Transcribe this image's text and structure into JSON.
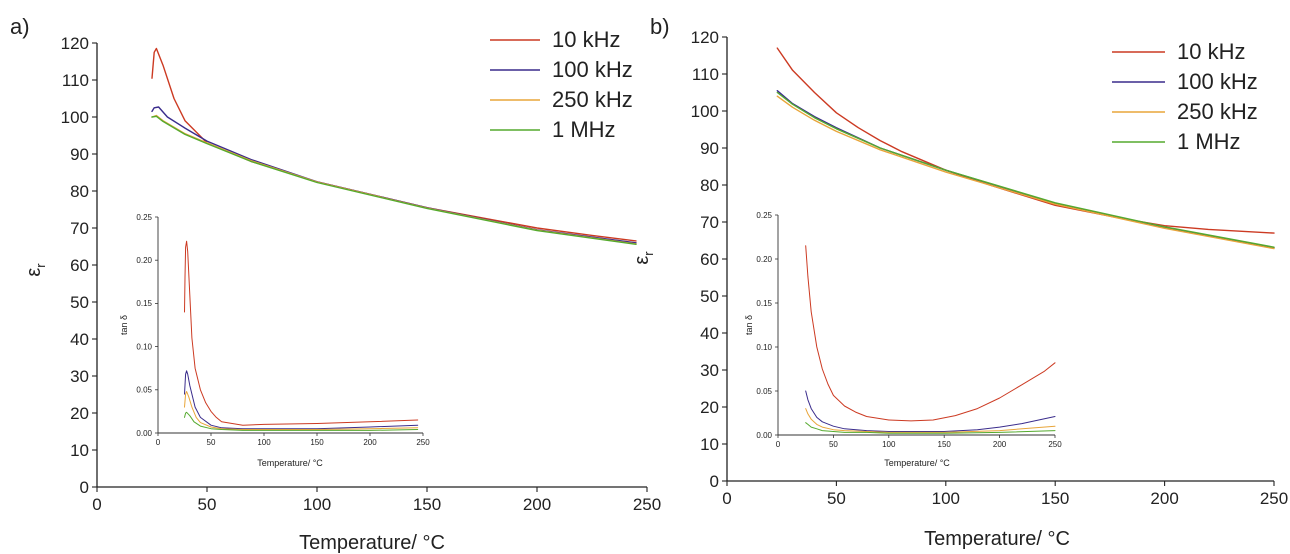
{
  "colors": {
    "10 kHz": "#cc3a22",
    "100 kHz": "#3a2c8c",
    "250 kHz": "#e8a53a",
    "1 MHz": "#55aa2e"
  },
  "chart_data": [
    {
      "type": "line",
      "panel_label": "a)",
      "xlabel": "Temperature/ °C",
      "ylabel": "ε",
      "ylabel_sub": "r",
      "xlim": [
        0,
        250
      ],
      "ylim": [
        0,
        120
      ],
      "xticks": [
        0,
        50,
        100,
        150,
        200,
        250
      ],
      "yticks": [
        0,
        10,
        20,
        30,
        40,
        50,
        60,
        70,
        80,
        90,
        100,
        110,
        120
      ],
      "legend_position": "top-right",
      "series": [
        {
          "name": "10 kHz",
          "x": [
            25,
            26,
            27,
            30,
            35,
            40,
            50,
            70,
            100,
            150,
            200,
            225,
            245
          ],
          "y": [
            110.5,
            117.5,
            118.5,
            114,
            105,
            99,
            93,
            88,
            82.5,
            75.5,
            70,
            68,
            66.5
          ]
        },
        {
          "name": "100 kHz",
          "x": [
            25,
            26,
            28,
            32,
            40,
            50,
            70,
            100,
            150,
            200,
            245
          ],
          "y": [
            101.5,
            102.5,
            102.7,
            100,
            97,
            93.5,
            88.5,
            82.5,
            75.5,
            69.5,
            66
          ]
        },
        {
          "name": "250 kHz",
          "x": [
            25,
            27,
            30,
            40,
            50,
            70,
            100,
            150,
            200,
            245
          ],
          "y": [
            100,
            100.4,
            99,
            95.5,
            93,
            88.2,
            82.4,
            75.4,
            69.4,
            65.7
          ]
        },
        {
          "name": "1 MHz",
          "x": [
            25,
            27,
            30,
            40,
            50,
            70,
            100,
            150,
            200,
            245
          ],
          "y": [
            100,
            100.2,
            98.8,
            95.3,
            92.8,
            88,
            82.3,
            75.3,
            69.3,
            65.6
          ]
        }
      ],
      "inset": {
        "xlabel": "Temperature/ °C",
        "ylabel": "tan δ",
        "xlim": [
          0,
          250
        ],
        "ylim": [
          0,
          0.25
        ],
        "xticks": [
          0,
          50,
          100,
          150,
          200,
          250
        ],
        "yticks": [
          0.0,
          0.05,
          0.1,
          0.15,
          0.2,
          0.25
        ],
        "series": [
          {
            "name": "10 kHz",
            "x": [
              25,
              25.5,
              26,
              27,
              28,
              30,
              32,
              35,
              40,
              45,
              50,
              55,
              60,
              70,
              80,
              100,
              150,
              200,
              245
            ],
            "y": [
              0.14,
              0.18,
              0.215,
              0.222,
              0.21,
              0.16,
              0.11,
              0.075,
              0.05,
              0.035,
              0.025,
              0.018,
              0.013,
              0.011,
              0.009,
              0.01,
              0.011,
              0.013,
              0.015
            ]
          },
          {
            "name": "100 kHz",
            "x": [
              25,
              26,
              27,
              28,
              30,
              35,
              40,
              50,
              60,
              80,
              100,
              150,
              200,
              245
            ],
            "y": [
              0.045,
              0.068,
              0.072,
              0.068,
              0.055,
              0.03,
              0.018,
              0.009,
              0.006,
              0.005,
              0.005,
              0.005,
              0.007,
              0.009
            ]
          },
          {
            "name": "250 kHz",
            "x": [
              25,
              26,
              27,
              29,
              32,
              36,
              40,
              50,
              60,
              80,
              100,
              150,
              200,
              245
            ],
            "y": [
              0.03,
              0.045,
              0.048,
              0.042,
              0.03,
              0.018,
              0.012,
              0.007,
              0.005,
              0.004,
              0.004,
              0.004,
              0.005,
              0.006
            ]
          },
          {
            "name": "1 MHz",
            "x": [
              25,
              26,
              27,
              30,
              34,
              40,
              50,
              60,
              80,
              100,
              150,
              200,
              245
            ],
            "y": [
              0.018,
              0.023,
              0.024,
              0.02,
              0.013,
              0.008,
              0.005,
              0.004,
              0.003,
              0.003,
              0.003,
              0.003,
              0.004
            ]
          }
        ]
      }
    },
    {
      "type": "line",
      "panel_label": "b)",
      "xlabel": "Temperature/ °C",
      "ylabel": "ε",
      "ylabel_sub": "r",
      "xlim": [
        0,
        250
      ],
      "ylim": [
        0,
        120
      ],
      "xticks": [
        0,
        50,
        100,
        150,
        200,
        250
      ],
      "yticks": [
        0,
        10,
        20,
        30,
        40,
        50,
        60,
        70,
        80,
        90,
        100,
        110,
        120
      ],
      "legend_position": "top-right",
      "series": [
        {
          "name": "10 kHz",
          "x": [
            23,
            30,
            40,
            50,
            60,
            70,
            80,
            100,
            120,
            150,
            180,
            200,
            220,
            250
          ],
          "y": [
            117,
            111,
            105,
            99.5,
            95.5,
            92,
            89,
            84,
            80,
            74.5,
            71,
            69,
            68,
            67
          ]
        },
        {
          "name": "100 kHz",
          "x": [
            23,
            30,
            40,
            50,
            70,
            100,
            150,
            200,
            250
          ],
          "y": [
            105.5,
            102,
            98.5,
            95.5,
            90,
            84,
            75,
            68.5,
            63
          ]
        },
        {
          "name": "250 kHz",
          "x": [
            23,
            30,
            40,
            50,
            70,
            100,
            150,
            200,
            250
          ],
          "y": [
            104,
            101,
            97.5,
            94.5,
            89.5,
            83.5,
            74.8,
            68.3,
            62.8
          ]
        },
        {
          "name": "1 MHz",
          "x": [
            23,
            30,
            40,
            50,
            70,
            100,
            150,
            200,
            250
          ],
          "y": [
            105,
            101.8,
            98.2,
            95.2,
            90,
            84,
            75.2,
            68.7,
            63.2
          ]
        }
      ],
      "inset": {
        "xlabel": "Temperature/ °C",
        "ylabel": "tan δ",
        "xlim": [
          0,
          250
        ],
        "ylim": [
          0,
          0.25
        ],
        "xticks": [
          0,
          50,
          100,
          150,
          200,
          250
        ],
        "yticks": [
          0.0,
          0.05,
          0.1,
          0.15,
          0.2,
          0.25
        ],
        "series": [
          {
            "name": "10 kHz",
            "x": [
              25,
              27,
              30,
              35,
              40,
              45,
              50,
              60,
              70,
              80,
              100,
              120,
              140,
              160,
              180,
              200,
              220,
              240,
              250
            ],
            "y": [
              0.215,
              0.18,
              0.14,
              0.1,
              0.075,
              0.058,
              0.045,
              0.033,
              0.026,
              0.021,
              0.017,
              0.016,
              0.017,
              0.022,
              0.03,
              0.042,
              0.057,
              0.072,
              0.082
            ]
          },
          {
            "name": "100 kHz",
            "x": [
              25,
              27,
              30,
              35,
              40,
              50,
              60,
              80,
              100,
              150,
              180,
              200,
              220,
              250
            ],
            "y": [
              0.05,
              0.04,
              0.03,
              0.02,
              0.015,
              0.01,
              0.007,
              0.005,
              0.004,
              0.004,
              0.006,
              0.009,
              0.013,
              0.021
            ]
          },
          {
            "name": "250 kHz",
            "x": [
              25,
              27,
              30,
              35,
              40,
              50,
              60,
              80,
              100,
              150,
              200,
              250
            ],
            "y": [
              0.03,
              0.024,
              0.018,
              0.012,
              0.009,
              0.006,
              0.005,
              0.004,
              0.003,
              0.003,
              0.005,
              0.01
            ]
          },
          {
            "name": "1 MHz",
            "x": [
              25,
              27,
              30,
              35,
              40,
              50,
              60,
              80,
              100,
              150,
              200,
              250
            ],
            "y": [
              0.014,
              0.012,
              0.009,
              0.007,
              0.005,
              0.004,
              0.003,
              0.003,
              0.002,
              0.002,
              0.003,
              0.005
            ]
          }
        ]
      }
    }
  ]
}
